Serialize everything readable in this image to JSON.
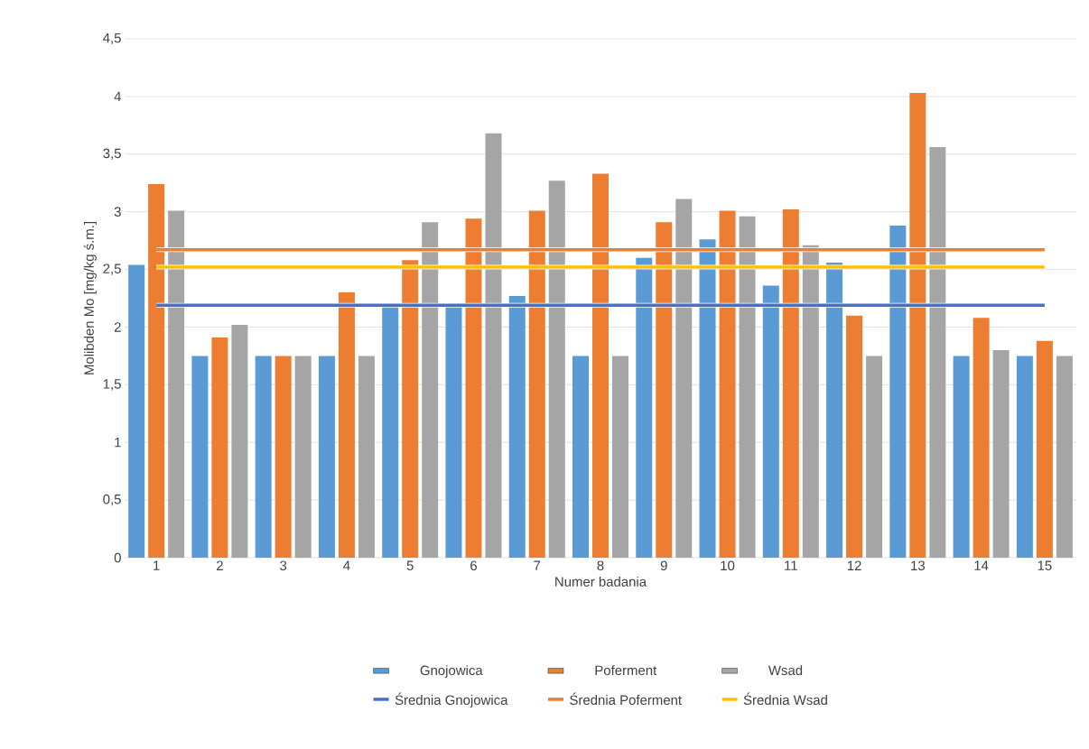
{
  "chart_data": {
    "type": "bar",
    "xlabel": "Numer badania",
    "ylabel": "Molibden Mo [mg/kg ś.m.]",
    "categories": [
      "1",
      "2",
      "3",
      "4",
      "5",
      "6",
      "7",
      "8",
      "9",
      "10",
      "11",
      "12",
      "13",
      "14",
      "15"
    ],
    "series": [
      {
        "name": "Gnojowica",
        "color": "#5b9bd5",
        "values": [
          2.54,
          1.75,
          1.75,
          1.75,
          2.2,
          2.2,
          2.27,
          1.75,
          2.6,
          2.76,
          2.36,
          2.56,
          2.88,
          1.75,
          1.75
        ]
      },
      {
        "name": "Poferment",
        "color": "#ed7d31",
        "values": [
          3.24,
          1.91,
          1.75,
          2.3,
          2.58,
          2.94,
          3.01,
          3.33,
          2.91,
          3.01,
          3.02,
          2.1,
          4.03,
          2.08,
          1.88
        ]
      },
      {
        "name": "Wsad",
        "color": "#a5a5a5",
        "values": [
          3.01,
          2.02,
          1.75,
          1.75,
          2.91,
          3.68,
          3.27,
          1.75,
          3.11,
          2.96,
          2.71,
          1.75,
          3.56,
          1.8,
          1.75
        ]
      },
      {
        "name": "Średnia Gnojowica",
        "type": "line",
        "color": "#4472c4",
        "values": [
          2.19,
          2.19,
          2.19,
          2.19,
          2.19,
          2.19,
          2.19,
          2.19,
          2.19,
          2.19,
          2.19,
          2.19,
          2.19,
          2.19,
          2.19
        ]
      },
      {
        "name": "Średnia Poferment",
        "type": "line",
        "color": "#ed7d31",
        "values": [
          2.67,
          2.67,
          2.67,
          2.67,
          2.67,
          2.67,
          2.67,
          2.67,
          2.67,
          2.67,
          2.67,
          2.67,
          2.67,
          2.67,
          2.67
        ]
      },
      {
        "name": "Średnia Wsad",
        "type": "line",
        "color": "#ffc000",
        "values": [
          2.52,
          2.52,
          2.52,
          2.52,
          2.52,
          2.52,
          2.52,
          2.52,
          2.52,
          2.52,
          2.52,
          2.52,
          2.52,
          2.52,
          2.52
        ]
      }
    ],
    "ylim": [
      0,
      4.5
    ],
    "yticks": [
      0,
      {
        "value": 0.5,
        "label": "0,5"
      },
      1,
      {
        "value": 1.5,
        "label": "1,5"
      },
      2,
      {
        "value": 2.5,
        "label": "2,5"
      },
      3,
      {
        "value": 3.5,
        "label": "3,5"
      },
      4,
      {
        "value": 4.5,
        "label": "4,5"
      }
    ],
    "grid": "y",
    "legend": "bottom"
  }
}
